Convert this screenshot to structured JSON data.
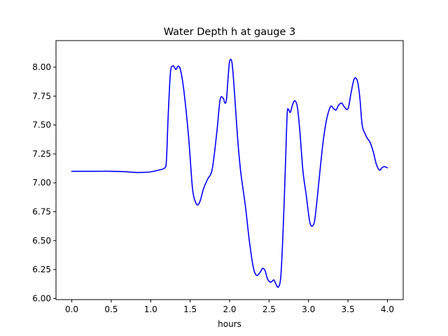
{
  "chart_data": {
    "type": "line",
    "title": "Water Depth h at gauge 3",
    "xlabel": "hours",
    "ylabel": "",
    "xlim": [
      -0.2,
      4.2
    ],
    "ylim": [
      5.99,
      8.23
    ],
    "grid": false,
    "xticks": [
      0.0,
      0.5,
      1.0,
      1.5,
      2.0,
      2.5,
      3.0,
      3.5,
      4.0
    ],
    "xtick_labels": [
      "0.0",
      "0.5",
      "1.0",
      "1.5",
      "2.0",
      "2.5",
      "3.0",
      "3.5",
      "4.0"
    ],
    "yticks": [
      6.0,
      6.25,
      6.5,
      6.75,
      7.0,
      7.25,
      7.5,
      7.75,
      8.0
    ],
    "ytick_labels": [
      "6.00",
      "6.25",
      "6.50",
      "6.75",
      "7.00",
      "7.25",
      "7.50",
      "7.75",
      "8.00"
    ],
    "series": [
      {
        "color": "#0000ff",
        "x": [
          0.0,
          0.3,
          0.5,
          0.7,
          0.8,
          0.9,
          1.0,
          1.1,
          1.18,
          1.2,
          1.22,
          1.25,
          1.28,
          1.3,
          1.32,
          1.35,
          1.38,
          1.42,
          1.48,
          1.53,
          1.57,
          1.6,
          1.63,
          1.67,
          1.72,
          1.78,
          1.84,
          1.88,
          1.92,
          1.94,
          1.96,
          1.98,
          2.0,
          2.03,
          2.06,
          2.1,
          2.14,
          2.2,
          2.25,
          2.3,
          2.34,
          2.38,
          2.42,
          2.45,
          2.48,
          2.52,
          2.56,
          2.59,
          2.62,
          2.65,
          2.68,
          2.71,
          2.73,
          2.75,
          2.77,
          2.8,
          2.83,
          2.86,
          2.89,
          2.93,
          2.97,
          3.02,
          3.07,
          3.1,
          3.13,
          3.16,
          3.19,
          3.23,
          3.28,
          3.32,
          3.35,
          3.38,
          3.42,
          3.45,
          3.5,
          3.54,
          3.58,
          3.62,
          3.65,
          3.68,
          3.72,
          3.75,
          3.78,
          3.82,
          3.86,
          3.9,
          3.93,
          3.96,
          4.0
        ],
        "y": [
          7.1,
          7.1,
          7.1,
          7.095,
          7.09,
          7.09,
          7.095,
          7.11,
          7.13,
          7.2,
          7.55,
          7.95,
          8.01,
          8.0,
          7.98,
          8.01,
          7.97,
          7.8,
          7.4,
          6.95,
          6.83,
          6.81,
          6.85,
          6.95,
          7.03,
          7.12,
          7.45,
          7.72,
          7.73,
          7.69,
          7.72,
          7.9,
          8.05,
          8.04,
          7.8,
          7.4,
          7.1,
          6.8,
          6.5,
          6.27,
          6.2,
          6.22,
          6.26,
          6.24,
          6.17,
          6.14,
          6.16,
          6.12,
          6.1,
          6.2,
          6.62,
          7.2,
          7.6,
          7.63,
          7.61,
          7.68,
          7.71,
          7.65,
          7.45,
          7.1,
          6.9,
          6.65,
          6.65,
          6.8,
          7.0,
          7.2,
          7.38,
          7.55,
          7.66,
          7.64,
          7.63,
          7.67,
          7.69,
          7.66,
          7.64,
          7.78,
          7.9,
          7.88,
          7.74,
          7.5,
          7.42,
          7.38,
          7.35,
          7.27,
          7.16,
          7.11,
          7.13,
          7.14,
          7.13
        ]
      }
    ]
  }
}
